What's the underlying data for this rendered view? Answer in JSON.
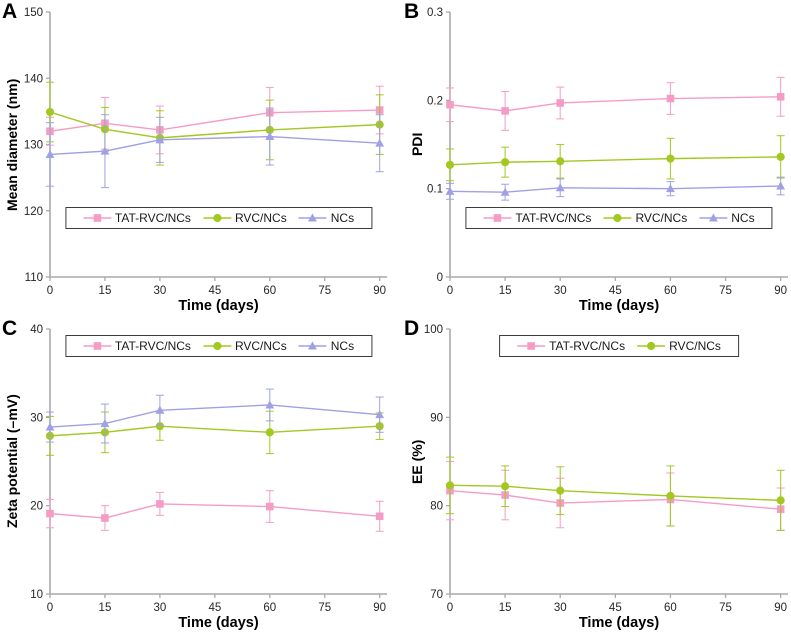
{
  "figure": {
    "background": "#ffffff",
    "axis_color": "#a9a9a9",
    "tick_text_color": "#262626",
    "series_colors": {
      "TAT-RVC/NCs": "#f59cc6",
      "RVC/NCs": "#a3c822",
      "NCs": "#a0a0e4"
    }
  },
  "chart_data": [
    {
      "panel_label": "A",
      "type": "line",
      "xlabel": "Time (days)",
      "ylabel": "Mean diameter (nm)",
      "x": [
        0,
        15,
        30,
        60,
        90
      ],
      "xticks": [
        0,
        15,
        30,
        45,
        60,
        75,
        90
      ],
      "xlim": [
        0,
        92
      ],
      "ylim": [
        110,
        150
      ],
      "yticks": [
        110,
        120,
        130,
        140,
        150
      ],
      "grid": false,
      "legend_position": "bottom",
      "series": [
        {
          "name": "TAT-RVC/NCs",
          "marker": "square",
          "color": "#f59cc6",
          "values": [
            132.0,
            133.2,
            132.2,
            134.8,
            135.2
          ],
          "errors": [
            2.1,
            3.9,
            3.6,
            3.8,
            3.6
          ]
        },
        {
          "name": "RVC/NCs",
          "marker": "circle",
          "color": "#a3c822",
          "values": [
            134.9,
            132.3,
            131.0,
            132.2,
            133.0
          ],
          "errors": [
            4.5,
            3.3,
            4.1,
            4.5,
            4.5
          ]
        },
        {
          "name": "NCs",
          "marker": "triangle",
          "color": "#a0a0e4",
          "values": [
            128.5,
            129.0,
            130.7,
            131.2,
            130.2
          ],
          "errors": [
            4.8,
            5.5,
            3.4,
            4.3,
            4.3
          ]
        }
      ]
    },
    {
      "panel_label": "B",
      "type": "line",
      "xlabel": "Time (days)",
      "ylabel": "PDI",
      "x": [
        0,
        15,
        30,
        60,
        90
      ],
      "xticks": [
        0,
        15,
        30,
        45,
        60,
        75,
        90
      ],
      "xlim": [
        0,
        92
      ],
      "ylim": [
        0,
        0.3
      ],
      "yticks": [
        0,
        0.1,
        0.2,
        0.3
      ],
      "grid": false,
      "legend_position": "bottom",
      "series": [
        {
          "name": "TAT-RVC/NCs",
          "marker": "square",
          "color": "#f59cc6",
          "values": [
            0.195,
            0.188,
            0.197,
            0.202,
            0.204
          ],
          "errors": [
            0.019,
            0.022,
            0.018,
            0.018,
            0.022
          ]
        },
        {
          "name": "RVC/NCs",
          "marker": "circle",
          "color": "#a3c822",
          "values": [
            0.127,
            0.13,
            0.131,
            0.134,
            0.136
          ],
          "errors": [
            0.018,
            0.017,
            0.019,
            0.023,
            0.024
          ]
        },
        {
          "name": "NCs",
          "marker": "triangle",
          "color": "#a0a0e4",
          "values": [
            0.097,
            0.096,
            0.101,
            0.1,
            0.103
          ],
          "errors": [
            0.009,
            0.009,
            0.01,
            0.008,
            0.01
          ]
        }
      ]
    },
    {
      "panel_label": "C",
      "type": "line",
      "xlabel": "Time (days)",
      "ylabel": "Zeta potential (–mV)",
      "x": [
        0,
        15,
        30,
        60,
        90
      ],
      "xticks": [
        0,
        15,
        30,
        45,
        60,
        75,
        90
      ],
      "xlim": [
        0,
        92
      ],
      "ylim": [
        10,
        40
      ],
      "yticks": [
        10,
        20,
        30,
        40
      ],
      "grid": false,
      "legend_position": "top",
      "series": [
        {
          "name": "TAT-RVC/NCs",
          "marker": "square",
          "color": "#f59cc6",
          "values": [
            19.1,
            18.6,
            20.2,
            19.9,
            18.8
          ],
          "errors": [
            1.6,
            1.4,
            1.3,
            1.8,
            1.7
          ]
        },
        {
          "name": "RVC/NCs",
          "marker": "circle",
          "color": "#a3c822",
          "values": [
            27.9,
            28.3,
            29.0,
            28.3,
            29.0
          ],
          "errors": [
            2.2,
            2.3,
            1.6,
            2.4,
            1.5
          ]
        },
        {
          "name": "NCs",
          "marker": "triangle",
          "color": "#a0a0e4",
          "values": [
            28.9,
            29.3,
            30.8,
            31.4,
            30.3
          ],
          "errors": [
            1.7,
            2.2,
            1.7,
            1.8,
            2.0
          ]
        }
      ]
    },
    {
      "panel_label": "D",
      "type": "line",
      "xlabel": "Time (days)",
      "ylabel": "EE (%)",
      "x": [
        0,
        15,
        30,
        60,
        90
      ],
      "xticks": [
        0,
        15,
        30,
        45,
        60,
        75,
        90
      ],
      "xlim": [
        0,
        92
      ],
      "ylim": [
        70,
        100
      ],
      "yticks": [
        70,
        80,
        90,
        100
      ],
      "grid": false,
      "legend_position": "top",
      "series": [
        {
          "name": "TAT-RVC/NCs",
          "marker": "square",
          "color": "#f59cc6",
          "values": [
            81.7,
            81.2,
            80.3,
            80.7,
            79.6
          ],
          "errors": [
            3.3,
            2.8,
            2.8,
            3.0,
            2.4
          ]
        },
        {
          "name": "RVC/NCs",
          "marker": "circle",
          "color": "#a3c822",
          "values": [
            82.3,
            82.2,
            81.7,
            81.1,
            80.6
          ],
          "errors": [
            3.2,
            2.3,
            2.7,
            3.4,
            3.4
          ]
        }
      ]
    }
  ]
}
